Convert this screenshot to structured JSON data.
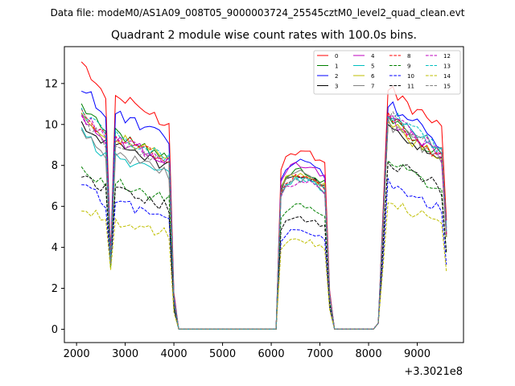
{
  "suptitle": "Data file: modeM0/AS1A09_008T05_9000003724_25545cztM0_level2_quad_clean.evt",
  "chart_data": {
    "type": "line",
    "title": "Quadrant 2 module wise count rates with 100.0s bins.",
    "xlabel": "",
    "ylabel": "",
    "x_offset_label": "+3.3021e8",
    "xlim": [
      1750,
      9950
    ],
    "ylim": [
      -0.65,
      13.8
    ],
    "xticks": [
      2000,
      3000,
      4000,
      5000,
      6000,
      7000,
      8000,
      9000
    ],
    "xtick_labels": [
      "2000",
      "3000",
      "4000",
      "5000",
      "6000",
      "7000",
      "8000",
      "9000"
    ],
    "yticks": [
      0,
      2,
      4,
      6,
      8,
      10,
      12
    ],
    "ytick_labels": [
      "0",
      "2",
      "4",
      "6",
      "8",
      "10",
      "12"
    ],
    "legend_location": "upper-right",
    "legend_columns": 4,
    "x_start": 2100,
    "bin": 100,
    "gaps": [
      {
        "from": 4100,
        "to": 6100
      },
      {
        "from": 7300,
        "to": 8100
      }
    ],
    "transitions": [
      {
        "at": 4000,
        "value": 1.4
      },
      {
        "at": 6200,
        "value": 4.3
      },
      {
        "at": 7200,
        "value": 1.6
      },
      {
        "at": 8200,
        "value": 0.3
      }
    ],
    "series": [
      {
        "name": "0",
        "color": "#ff0000",
        "dash": "solid",
        "level1": 11.4,
        "level2": 8.2,
        "level3": 11.8,
        "dip": 3.6
      },
      {
        "name": "1",
        "color": "#008000",
        "dash": "solid",
        "level1": 9.6,
        "level2": 7.3,
        "level3": 10.3,
        "dip": 3.2
      },
      {
        "name": "2",
        "color": "#0000ff",
        "dash": "solid",
        "level1": 10.5,
        "level2": 7.7,
        "level3": 11.0,
        "dip": 3.5
      },
      {
        "name": "3",
        "color": "#000000",
        "dash": "solid",
        "level1": 9.0,
        "level2": 7.1,
        "level3": 10.0,
        "dip": 3.2
      },
      {
        "name": "4",
        "color": "#bf00bf",
        "dash": "solid",
        "level1": 9.3,
        "level2": 7.6,
        "level3": 10.4,
        "dip": 3.3
      },
      {
        "name": "5",
        "color": "#00bfbf",
        "dash": "solid",
        "level1": 8.5,
        "level2": 6.9,
        "level3": 10.6,
        "dip": 3.1
      },
      {
        "name": "6",
        "color": "#bfbf00",
        "dash": "solid",
        "level1": 9.4,
        "level2": 7.2,
        "level3": 10.0,
        "dip": 3.3
      },
      {
        "name": "7",
        "color": "#808080",
        "dash": "solid",
        "level1": 8.6,
        "level2": 7.2,
        "level3": 10.1,
        "dip": 3.1
      },
      {
        "name": "8",
        "color": "#ff0000",
        "dash": "dashed",
        "level1": 9.4,
        "level2": 7.0,
        "level3": 10.3,
        "dip": 3.4
      },
      {
        "name": "9",
        "color": "#008000",
        "dash": "dashed",
        "level1": 7.1,
        "level2": 5.7,
        "level3": 8.2,
        "dip": 3.0
      },
      {
        "name": "10",
        "color": "#0000ff",
        "dash": "dashed",
        "level1": 6.2,
        "level2": 4.5,
        "level3": 7.0,
        "dip": 3.2
      },
      {
        "name": "11",
        "color": "#000000",
        "dash": "dashed",
        "level1": 6.8,
        "level2": 5.1,
        "level3": 8.3,
        "dip": 3.2
      },
      {
        "name": "12",
        "color": "#bf00bf",
        "dash": "dashed",
        "level1": 9.3,
        "level2": 6.8,
        "level3": 10.4,
        "dip": 3.3
      },
      {
        "name": "13",
        "color": "#00bfbf",
        "dash": "dashed",
        "level1": 9.5,
        "level2": 6.9,
        "level3": 10.7,
        "dip": 3.2
      },
      {
        "name": "14",
        "color": "#bfbf00",
        "dash": "dashed",
        "level1": 5.3,
        "level2": 4.1,
        "level3": 6.2,
        "dip": 2.9
      },
      {
        "name": "15",
        "color": "#808080",
        "dash": "dashed",
        "level1": 9.1,
        "level2": 6.9,
        "level3": 10.6,
        "dip": 3.2
      }
    ]
  }
}
